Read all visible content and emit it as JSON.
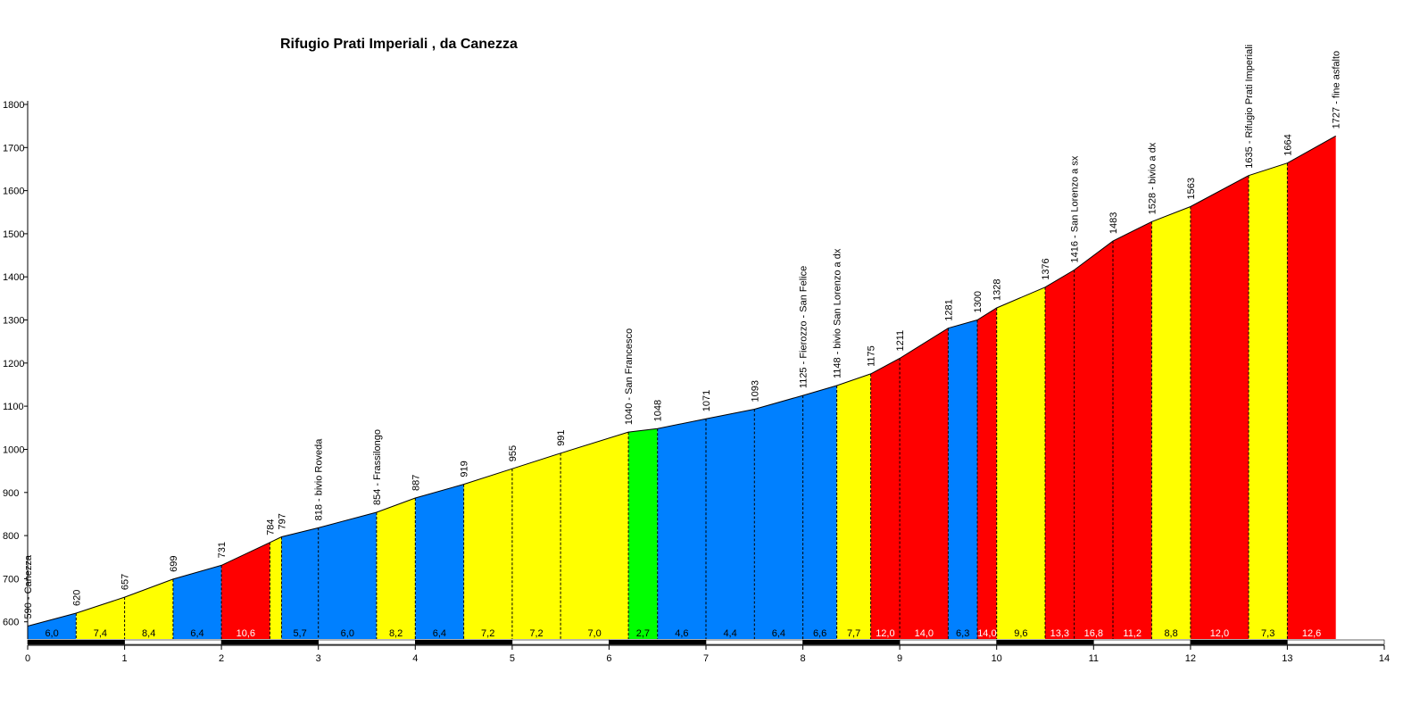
{
  "chart_data": {
    "type": "area",
    "title": "Rifugio Prati Imperiali , da Canezza",
    "xlabel": "",
    "ylabel": "",
    "xlim": [
      0,
      14
    ],
    "ylim": [
      560,
      1800
    ],
    "x_ticks": [
      "0",
      "1",
      "2",
      "3",
      "4",
      "5",
      "6",
      "7",
      "8",
      "9",
      "10",
      "11",
      "12",
      "13",
      "14"
    ],
    "y_ticks": [
      "1800",
      "1700",
      "1600",
      "1500",
      "1400",
      "1300",
      "1200",
      "1100",
      "1000",
      "900",
      "800",
      "700",
      "600"
    ],
    "profile": [
      {
        "km": 0,
        "alt": 590,
        "label": "590 - Canezza"
      },
      {
        "km": 0.5,
        "alt": 620,
        "label": "620"
      },
      {
        "km": 1,
        "alt": 657,
        "label": "657"
      },
      {
        "km": 1.5,
        "alt": 699,
        "label": "699"
      },
      {
        "km": 2,
        "alt": 731,
        "label": "731"
      },
      {
        "km": 2.5,
        "alt": 784,
        "label": "784"
      },
      {
        "km": 2.62,
        "alt": 797,
        "label": "797"
      },
      {
        "km": 3,
        "alt": 818,
        "label": "818 - bivio Roveda"
      },
      {
        "km": 3.6,
        "alt": 854,
        "label": "854 - Frassilongo"
      },
      {
        "km": 4,
        "alt": 887,
        "label": "887"
      },
      {
        "km": 4.5,
        "alt": 919,
        "label": "919"
      },
      {
        "km": 5,
        "alt": 955,
        "label": "955"
      },
      {
        "km": 5.5,
        "alt": 991,
        "label": "991"
      },
      {
        "km": 6.2,
        "alt": 1040,
        "label": "1040 - San Francesco"
      },
      {
        "km": 6.5,
        "alt": 1048,
        "label": "1048"
      },
      {
        "km": 7,
        "alt": 1071,
        "label": "1071"
      },
      {
        "km": 7.5,
        "alt": 1093,
        "label": "1093"
      },
      {
        "km": 8,
        "alt": 1125,
        "label": "1125 - Fierozzo - San Felice"
      },
      {
        "km": 8.35,
        "alt": 1148,
        "label": "1148 - bivio San Lorenzo a dx"
      },
      {
        "km": 8.7,
        "alt": 1175,
        "label": "1175"
      },
      {
        "km": 9,
        "alt": 1211,
        "label": "1211"
      },
      {
        "km": 9.5,
        "alt": 1281,
        "label": "1281"
      },
      {
        "km": 9.8,
        "alt": 1300,
        "label": "1300"
      },
      {
        "km": 10,
        "alt": 1328,
        "label": "1328"
      },
      {
        "km": 10.5,
        "alt": 1376,
        "label": "1376"
      },
      {
        "km": 10.8,
        "alt": 1416,
        "label": "1416 - San Lorenzo a sx"
      },
      {
        "km": 11.2,
        "alt": 1483,
        "label": "1483"
      },
      {
        "km": 11.6,
        "alt": 1528,
        "label": "1528 - bivio a dx"
      },
      {
        "km": 12,
        "alt": 1563,
        "label": "1563"
      },
      {
        "km": 12.6,
        "alt": 1635,
        "label": "1635 - Rifugio Prati Imperiali"
      },
      {
        "km": 13,
        "alt": 1664,
        "label": "1664"
      },
      {
        "km": 13.5,
        "alt": 1727,
        "label": "1727 - fine asfalto"
      }
    ],
    "segments": [
      {
        "grade": "6,0",
        "category": "blue"
      },
      {
        "grade": "7,4",
        "category": "yellow"
      },
      {
        "grade": "8,4",
        "category": "yellow"
      },
      {
        "grade": "6,4",
        "category": "blue"
      },
      {
        "grade": "10,6",
        "category": "red"
      },
      {
        "grade": "",
        "category": "yellow"
      },
      {
        "grade": "5,7",
        "category": "blue"
      },
      {
        "grade": "6,0",
        "category": "blue"
      },
      {
        "grade": "8,2",
        "category": "yellow"
      },
      {
        "grade": "6,4",
        "category": "blue"
      },
      {
        "grade": "7,2",
        "category": "yellow"
      },
      {
        "grade": "7,2",
        "category": "yellow"
      },
      {
        "grade": "7,0",
        "category": "yellow"
      },
      {
        "grade": "2,7",
        "category": "green"
      },
      {
        "grade": "4,6",
        "category": "blue"
      },
      {
        "grade": "4,4",
        "category": "blue"
      },
      {
        "grade": "6,4",
        "category": "blue"
      },
      {
        "grade": "6,6",
        "category": "blue"
      },
      {
        "grade": "7,7",
        "category": "yellow"
      },
      {
        "grade": "12,0",
        "category": "red"
      },
      {
        "grade": "14,0",
        "category": "red"
      },
      {
        "grade": "6,3",
        "category": "blue"
      },
      {
        "grade": "14,0",
        "category": "red"
      },
      {
        "grade": "9,6",
        "category": "yellow"
      },
      {
        "grade": "13,3",
        "category": "red"
      },
      {
        "grade": "16,8",
        "category": "red"
      },
      {
        "grade": "11,2",
        "category": "red"
      },
      {
        "grade": "8,8",
        "category": "yellow"
      },
      {
        "grade": "12,0",
        "category": "red"
      },
      {
        "grade": "7,3",
        "category": "yellow"
      },
      {
        "grade": "12,6",
        "category": "red"
      }
    ],
    "colors": {
      "green": "#00ff00",
      "blue": "#0080ff",
      "yellow": "#ffff00",
      "red": "#ff0000",
      "axis": "#000000",
      "scale_dark": "#000000",
      "scale_light": "#ffffff"
    }
  }
}
